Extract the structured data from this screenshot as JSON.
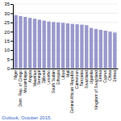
{
  "chart_data": {
    "type": "bar",
    "categories": [
      "Niger",
      "Dem. Rep. of Congo",
      "Mozambique",
      "Angola",
      "Mauritius",
      "Senegal",
      "Djibouti",
      "Lesotho",
      "South Sudan",
      "Ethiopia",
      "Libya",
      "Mali",
      "Central African Republic",
      "Cameroon",
      "Tanzania",
      "Swaziland",
      "Uganda",
      "Kingdom of Swaziland",
      "Eritrea",
      "Cyprus",
      "China",
      "Eritrea"
    ],
    "values": [
      29,
      28.5,
      28,
      27.5,
      27,
      26.5,
      26,
      25.5,
      25.2,
      25,
      24.8,
      24.5,
      24.2,
      24,
      23.8,
      23.5,
      22,
      21.5,
      21,
      20.5,
      20,
      19.5
    ],
    "color": "#9999cc",
    "ylim": [
      0,
      35
    ],
    "yticks": [
      0,
      5,
      10,
      15,
      20,
      25,
      30,
      35
    ],
    "grid": true,
    "annotations": [
      {
        "text": "Outlook, October 2015.",
        "color": "#3366cc"
      }
    ]
  }
}
